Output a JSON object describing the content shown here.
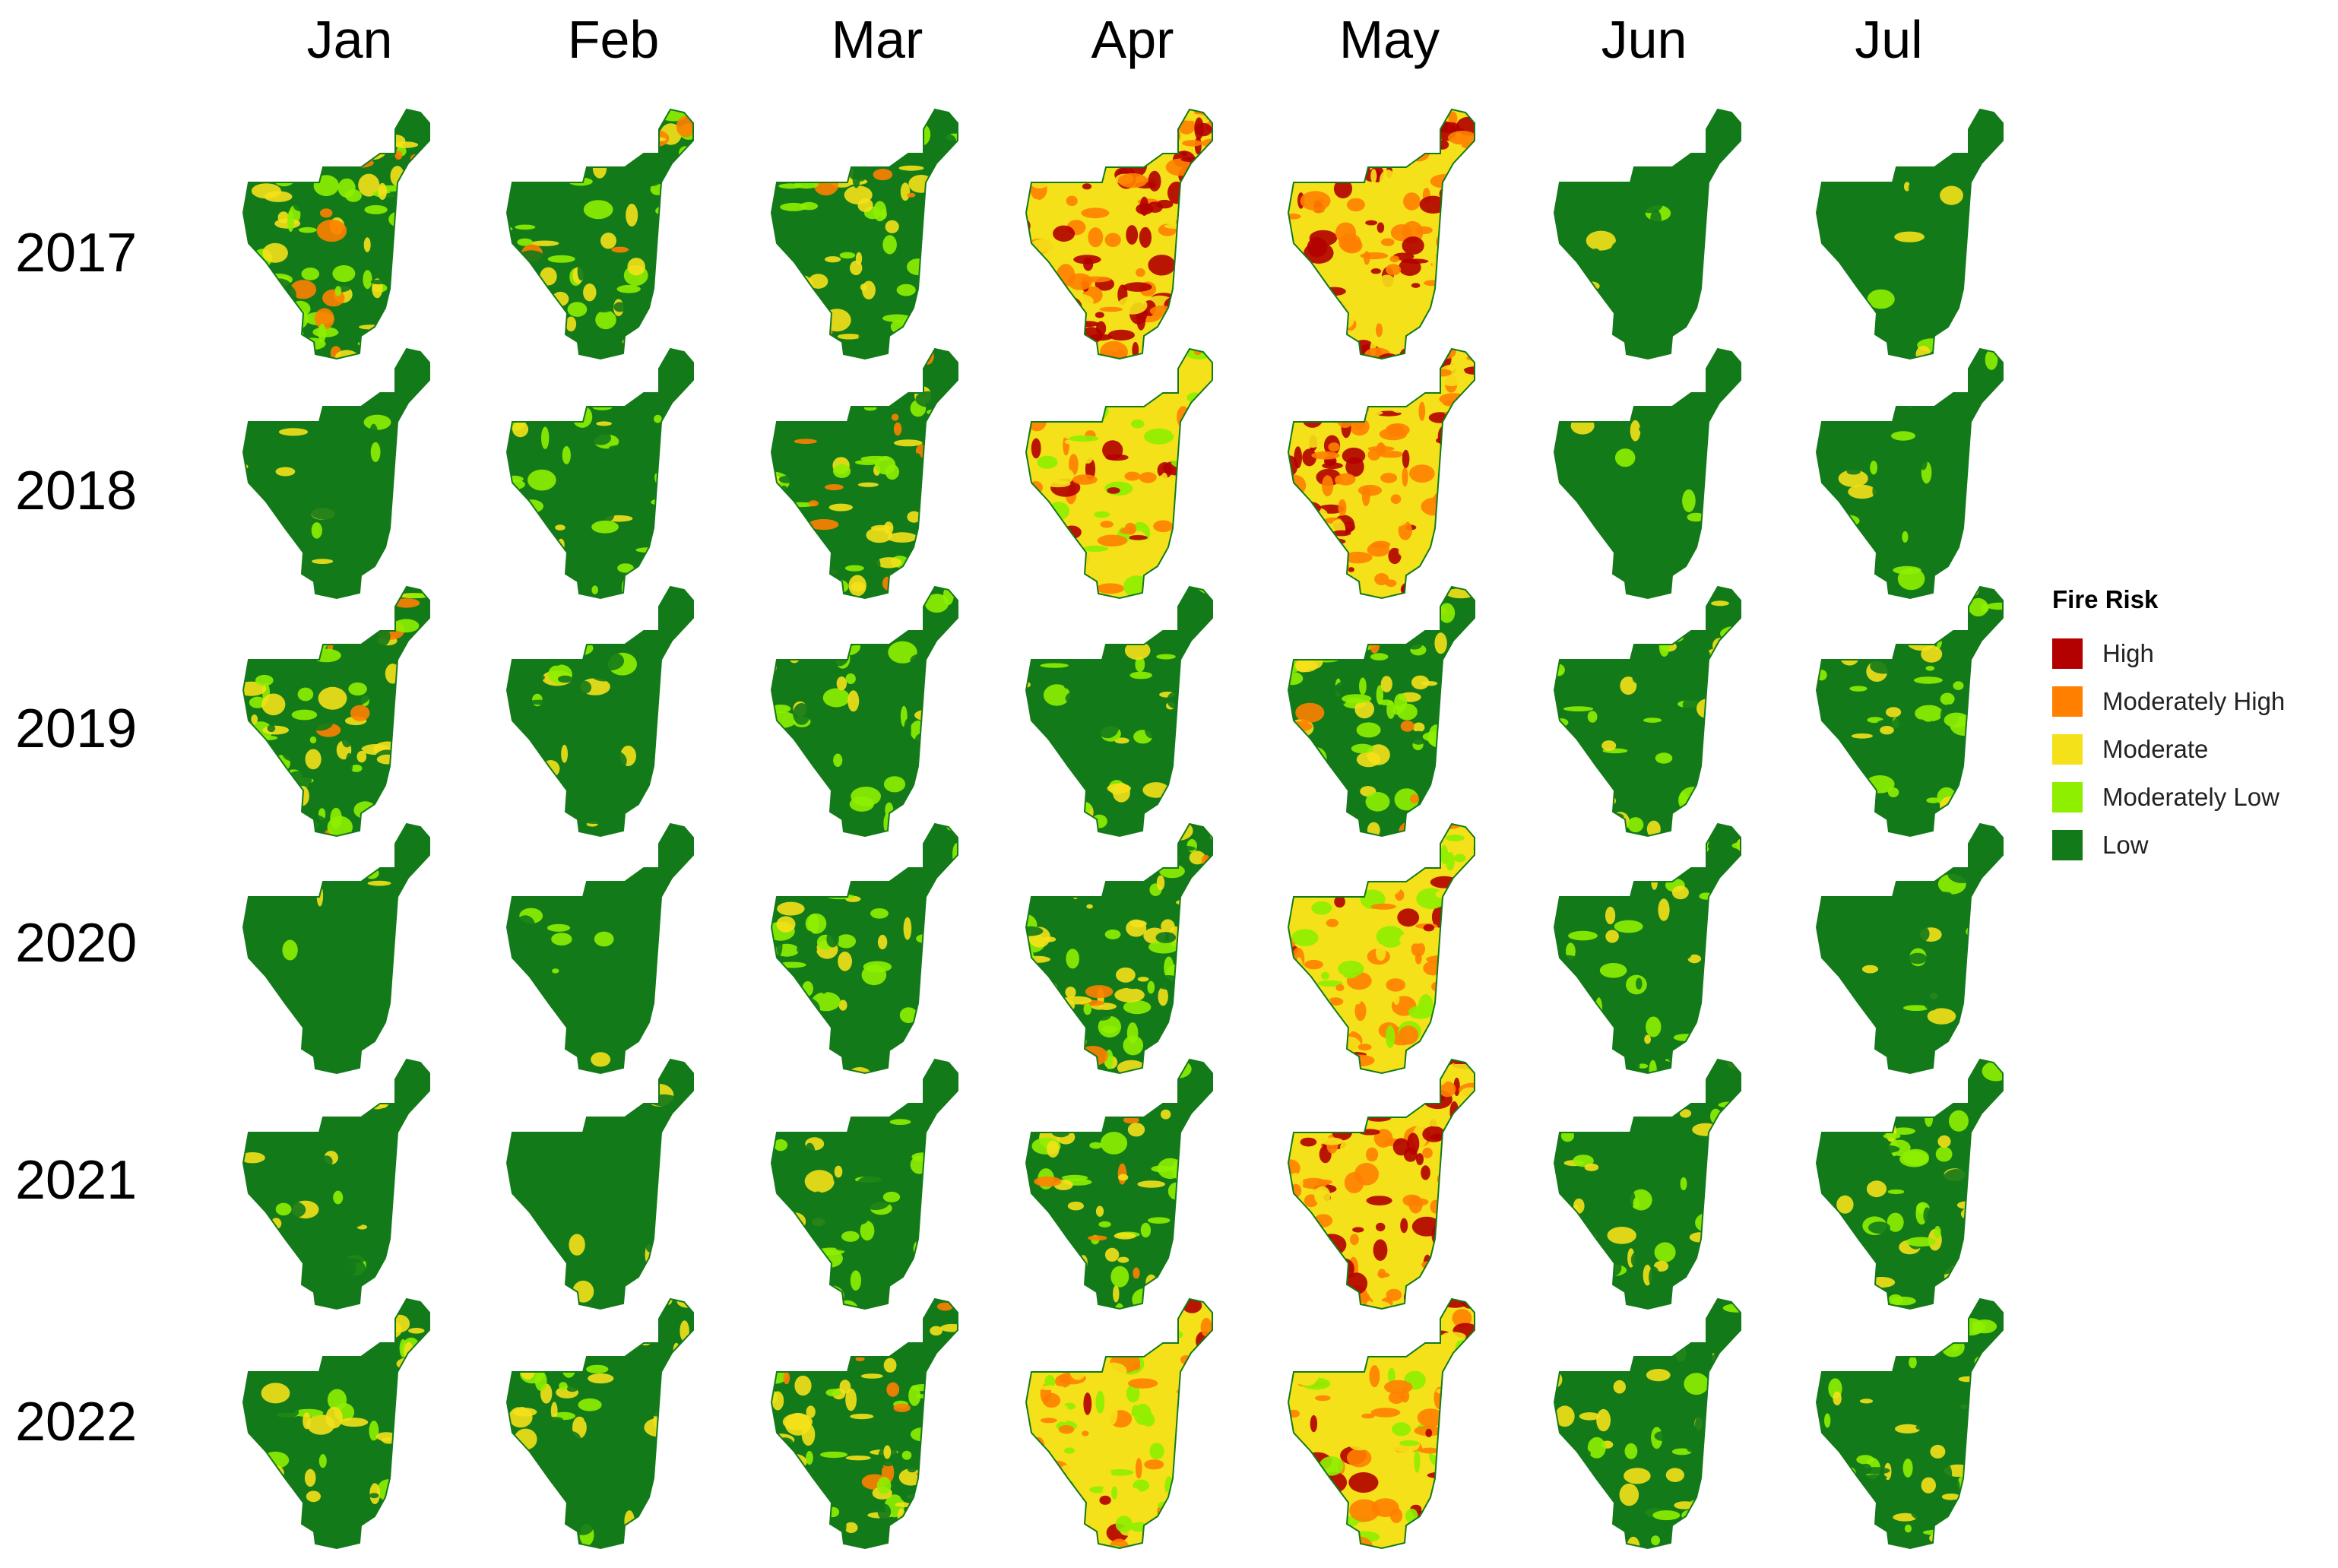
{
  "months": [
    "Jan",
    "Feb",
    "Mar",
    "Apr",
    "May",
    "Jun",
    "Jul"
  ],
  "years": [
    "2017",
    "2018",
    "2019",
    "2020",
    "2021",
    "2022"
  ],
  "legend": {
    "title": "Fire Risk",
    "classes": [
      {
        "label": "High",
        "color": "#b30000"
      },
      {
        "label": "Moderately High",
        "color": "#ff8000"
      },
      {
        "label": "Moderate",
        "color": "#f5e11a"
      },
      {
        "label": "Moderately Low",
        "color": "#8ef000"
      },
      {
        "label": "Low",
        "color": "#137a1a"
      }
    ]
  },
  "risk_levels": [
    [
      2,
      2,
      2,
      4,
      4,
      0,
      0
    ],
    [
      0,
      1,
      2,
      3,
      4,
      0,
      0
    ],
    [
      2,
      0,
      1,
      1,
      2,
      1,
      1
    ],
    [
      0,
      0,
      1,
      2,
      3,
      1,
      0
    ],
    [
      0,
      0,
      1,
      2,
      4,
      1,
      1
    ],
    [
      1,
      1,
      2,
      3,
      3,
      1,
      1
    ]
  ]
}
